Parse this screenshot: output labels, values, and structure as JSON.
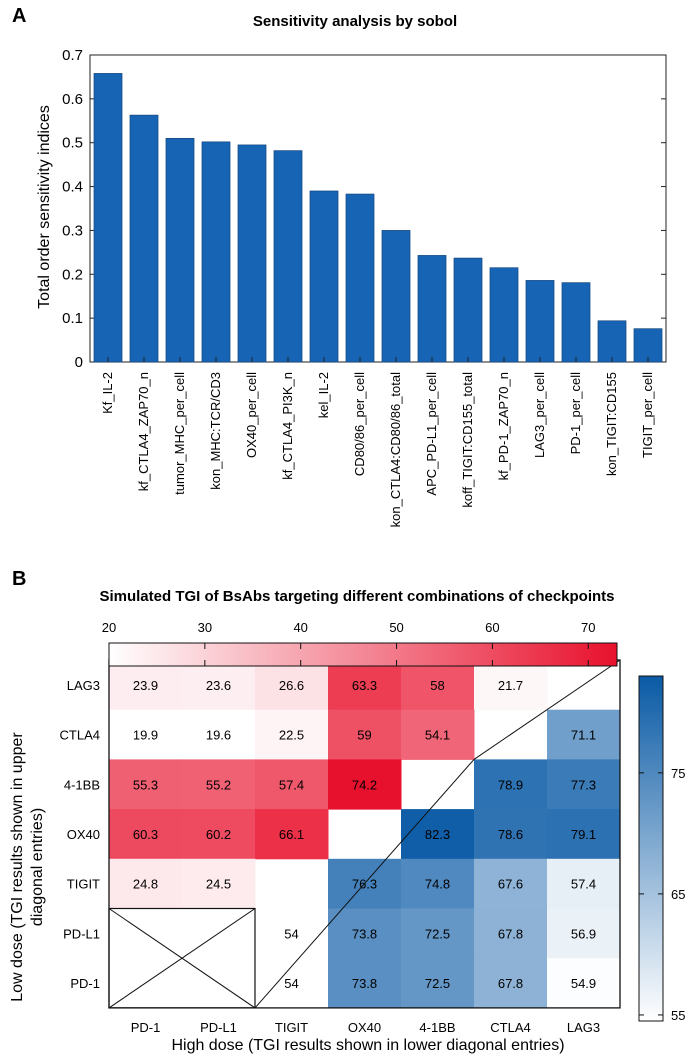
{
  "panel_a": {
    "label": "A",
    "chart_data": {
      "type": "bar",
      "title": "Sensitivity analysis by sobol",
      "ylabel": "Total order sensitivity indices",
      "xlabel": "",
      "ylim": [
        0,
        0.7
      ],
      "yticks": [
        "0",
        "0.1",
        "0.2",
        "0.3",
        "0.4",
        "0.5",
        "0.6",
        "0.7"
      ],
      "bar_color": "#1764b5",
      "categories": [
        "Kf_IL-2",
        "kf_CTLA4_ZAP70_n",
        "tumor_MHC_per_cell",
        "kon_MHC:TCR/CD3",
        "OX40_per_cell",
        "kf_CTLA4_PI3K_n",
        "kel_IL-2",
        "CD80/86_per_cell",
        "kon_CTLA4:CD80/86_total",
        "APC_PD-L1_per_cell",
        "koff_TIGIT:CD155_total",
        "kf_PD-1_ZAP70_n",
        "LAG3_per_cell",
        "PD-1_per_cell",
        "kon_TIGIT:CD155",
        "TIGIT_per_cell"
      ],
      "values": [
        0.658,
        0.563,
        0.51,
        0.502,
        0.495,
        0.482,
        0.39,
        0.383,
        0.3,
        0.243,
        0.237,
        0.215,
        0.186,
        0.181,
        0.094,
        0.076
      ]
    }
  },
  "panel_b": {
    "label": "B",
    "chart_data": {
      "type": "heatmap",
      "title": "Simulated TGI of BsAbs targeting different combinations of checkpoints",
      "xlabel": "High dose (TGI results shown in lower diagonal entries)",
      "ylabel_line1": "Low dose (TGI results shown in upper",
      "ylabel_line2": "diagonal entries)",
      "columns": [
        "PD-1",
        "PD-L1",
        "TIGIT",
        "OX40",
        "4-1BB",
        "CTLA4",
        "LAG3"
      ],
      "rows": [
        "LAG3",
        "CTLA4",
        "4-1BB",
        "OX40",
        "TIGIT",
        "PD-L1",
        "PD-1"
      ],
      "cells": [
        [
          23.9,
          23.6,
          26.6,
          63.3,
          58,
          21.7,
          null
        ],
        [
          19.9,
          19.6,
          22.5,
          59,
          54.1,
          null,
          71.1
        ],
        [
          55.3,
          55.2,
          57.4,
          74.2,
          null,
          78.9,
          77.3
        ],
        [
          60.3,
          60.2,
          66.1,
          null,
          82.3,
          78.6,
          79.1
        ],
        [
          24.8,
          24.5,
          null,
          76.3,
          74.8,
          67.6,
          57.4
        ],
        [
          null,
          null,
          54,
          73.8,
          72.5,
          67.8,
          56.9
        ],
        [
          null,
          null,
          54,
          73.8,
          72.5,
          67.8,
          54.9
        ]
      ],
      "low_dose_colorbar": {
        "range": [
          20,
          73
        ],
        "ticks": [
          20,
          30,
          40,
          50,
          60,
          70
        ],
        "color_low": "#ffffff",
        "color_high": "#e8112d"
      },
      "high_dose_colorbar": {
        "range": [
          54.5,
          83
        ],
        "ticks": [
          55,
          65,
          75
        ],
        "color_low": "#ffffff",
        "color_high": "#0a5aa5"
      }
    }
  }
}
